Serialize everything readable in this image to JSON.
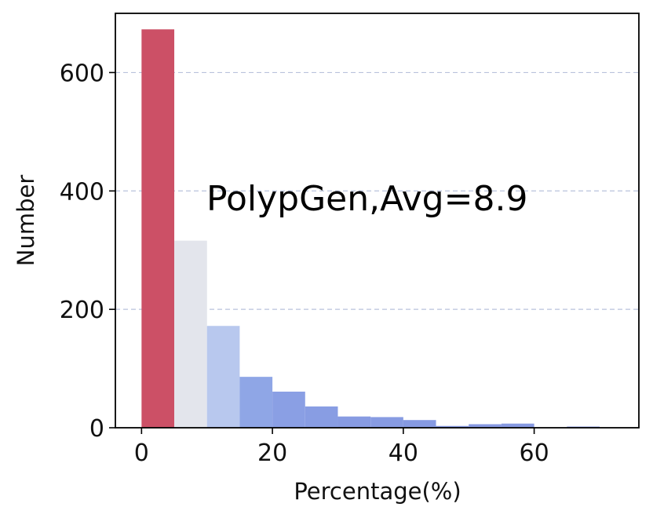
{
  "chart_data": {
    "type": "bar",
    "title": "",
    "xlabel": "Percentage(%)",
    "ylabel": "Number",
    "annotation": "PolypGen,Avg=8.9",
    "xlim": [
      -4,
      76
    ],
    "ylim": [
      0,
      700
    ],
    "xticks": [
      0,
      20,
      40,
      60
    ],
    "yticks": [
      0,
      200,
      400,
      600
    ],
    "grid": "horizontal-dashed",
    "bin_width": 5,
    "bins": [
      {
        "start": 0,
        "value": 673,
        "color": "#cc5066"
      },
      {
        "start": 5,
        "value": 316,
        "color": "#e3e5ec"
      },
      {
        "start": 10,
        "value": 172,
        "color": "#b8c8ee"
      },
      {
        "start": 15,
        "value": 86,
        "color": "#8fa6e6"
      },
      {
        "start": 20,
        "value": 61,
        "color": "#8a9fe4"
      },
      {
        "start": 25,
        "value": 36,
        "color": "#889de3"
      },
      {
        "start": 30,
        "value": 19,
        "color": "#879be2"
      },
      {
        "start": 35,
        "value": 18,
        "color": "#879be2"
      },
      {
        "start": 40,
        "value": 13,
        "color": "#869ae2"
      },
      {
        "start": 45,
        "value": 3,
        "color": "#8699e1"
      },
      {
        "start": 50,
        "value": 6,
        "color": "#8699e1"
      },
      {
        "start": 55,
        "value": 7,
        "color": "#8699e1"
      },
      {
        "start": 60,
        "value": 0,
        "color": "#8699e1"
      },
      {
        "start": 65,
        "value": 2,
        "color": "#8699e1"
      }
    ]
  }
}
